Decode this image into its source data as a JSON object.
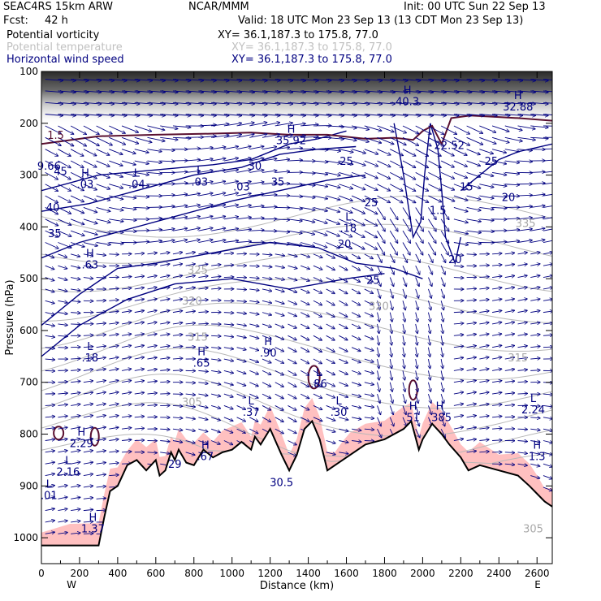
{
  "header": {
    "model": "SEAC4RS 15km ARW",
    "org": "NCAR/MMM",
    "init": "Init: 00 UTC Sun 22 Sep 13",
    "fcst_label": "Fcst:",
    "fcst_value": "42 h",
    "valid": "Valid: 18 UTC Mon 23 Sep 13 (13 CDT Mon 23 Sep 13)",
    "fields": [
      {
        "name": "Potential vorticity",
        "xy": "XY=  36.1,187.3 to 175.8, 77.0",
        "color": "#000000"
      },
      {
        "name": "Potential temperature",
        "xy": "XY=  36.1,187.3 to 175.8, 77.0",
        "color": "#c0c0c0"
      },
      {
        "name": "Horizontal wind speed",
        "xy": "XY=  36.1,187.3 to 175.8, 77.0",
        "color": "#000080"
      }
    ]
  },
  "chart_data": {
    "type": "cross-section",
    "xlabel": "Distance (km)",
    "ylabel": "Pressure (hPa)",
    "xlim": [
      0,
      2680
    ],
    "ylim": [
      1050,
      100
    ],
    "x_ticks": [
      0,
      200,
      400,
      600,
      800,
      1000,
      1200,
      1400,
      1600,
      1800,
      2000,
      2200,
      2400,
      2600
    ],
    "y_ticks": [
      100,
      200,
      300,
      400,
      500,
      600,
      700,
      800,
      900,
      1000
    ],
    "x_end_labels": {
      "left": "W",
      "right": "E"
    },
    "terrain": [
      [
        0,
        1015
      ],
      [
        150,
        1015
      ],
      [
        300,
        1015
      ],
      [
        330,
        960
      ],
      [
        360,
        910
      ],
      [
        400,
        900
      ],
      [
        450,
        860
      ],
      [
        500,
        850
      ],
      [
        550,
        870
      ],
      [
        600,
        850
      ],
      [
        620,
        880
      ],
      [
        650,
        870
      ],
      [
        680,
        835
      ],
      [
        700,
        850
      ],
      [
        720,
        830
      ],
      [
        760,
        855
      ],
      [
        800,
        860
      ],
      [
        850,
        830
      ],
      [
        900,
        845
      ],
      [
        950,
        835
      ],
      [
        1000,
        830
      ],
      [
        1050,
        815
      ],
      [
        1100,
        830
      ],
      [
        1120,
        805
      ],
      [
        1150,
        820
      ],
      [
        1200,
        790
      ],
      [
        1260,
        840
      ],
      [
        1300,
        870
      ],
      [
        1340,
        840
      ],
      [
        1380,
        790
      ],
      [
        1420,
        775
      ],
      [
        1460,
        810
      ],
      [
        1500,
        870
      ],
      [
        1540,
        860
      ],
      [
        1580,
        850
      ],
      [
        1620,
        840
      ],
      [
        1700,
        820
      ],
      [
        1800,
        810
      ],
      [
        1900,
        790
      ],
      [
        1940,
        775
      ],
      [
        1980,
        830
      ],
      [
        2000,
        810
      ],
      [
        2050,
        780
      ],
      [
        2100,
        800
      ],
      [
        2140,
        820
      ],
      [
        2200,
        845
      ],
      [
        2240,
        870
      ],
      [
        2300,
        860
      ],
      [
        2400,
        870
      ],
      [
        2500,
        880
      ],
      [
        2560,
        900
      ],
      [
        2600,
        915
      ],
      [
        2640,
        930
      ],
      [
        2680,
        940
      ]
    ],
    "theta_labels": [
      {
        "x": 2540,
        "p": 400,
        "label": "335"
      },
      {
        "x": 820,
        "p": 490,
        "label": "325"
      },
      {
        "x": 790,
        "p": 550,
        "label": "320"
      },
      {
        "x": 1770,
        "p": 560,
        "label": "320"
      },
      {
        "x": 2500,
        "p": 660,
        "label": "315"
      },
      {
        "x": 820,
        "p": 620,
        "label": "315"
      },
      {
        "x": 790,
        "p": 745,
        "label": "305"
      },
      {
        "x": 2580,
        "p": 990,
        "label": "305"
      }
    ],
    "wind_labels": [
      {
        "x": 100,
        "p": 300,
        "label": "45"
      },
      {
        "x": 60,
        "p": 370,
        "label": "40"
      },
      {
        "x": 70,
        "p": 420,
        "label": "35"
      },
      {
        "x": 1120,
        "p": 290,
        "label": "30"
      },
      {
        "x": 1600,
        "p": 280,
        "label": "25"
      },
      {
        "x": 1730,
        "p": 360,
        "label": "25"
      },
      {
        "x": 1590,
        "p": 440,
        "label": "20"
      },
      {
        "x": 2170,
        "p": 470,
        "label": "20"
      },
      {
        "x": 1740,
        "p": 510,
        "label": "25"
      },
      {
        "x": 2230,
        "p": 330,
        "label": "15"
      },
      {
        "x": 2450,
        "p": 350,
        "label": "20"
      },
      {
        "x": 2360,
        "p": 280,
        "label": "25"
      },
      {
        "x": 1240,
        "p": 320,
        "label": "35"
      }
    ],
    "pv_labels": [
      {
        "x": 75,
        "p": 230,
        "label": "1.5"
      }
    ],
    "extrema": [
      {
        "x": 230,
        "p": 325,
        "kind": "H",
        "value": ".03"
      },
      {
        "x": 500,
        "p": 325,
        "kind": "L",
        "value": ".04"
      },
      {
        "x": 830,
        "p": 320,
        "kind": "L",
        "value": ".03"
      },
      {
        "x": 1050,
        "p": 330,
        "kind": "",
        "value": ".03"
      },
      {
        "x": 255,
        "p": 480,
        "kind": "H",
        "value": ".63"
      },
      {
        "x": 1310,
        "p": 240,
        "kind": "H",
        "value": "35.92"
      },
      {
        "x": 1610,
        "p": 410,
        "kind": "L",
        "value": ".18"
      },
      {
        "x": 1920,
        "p": 165,
        "kind": "H",
        "value": "40.3"
      },
      {
        "x": 2500,
        "p": 175,
        "kind": "H",
        "value": "32.88"
      },
      {
        "x": 2140,
        "p": 250,
        "kind": "",
        "value": "22.52"
      },
      {
        "x": 2080,
        "p": 375,
        "kind": "",
        "value": "1.5"
      },
      {
        "x": 40,
        "p": 290,
        "kind": "",
        "value": "9.66"
      },
      {
        "x": 255,
        "p": 660,
        "kind": "L",
        "value": ".18"
      },
      {
        "x": 840,
        "p": 670,
        "kind": "H",
        "value": ".65"
      },
      {
        "x": 1190,
        "p": 650,
        "kind": "H",
        "value": ".90"
      },
      {
        "x": 1100,
        "p": 765,
        "kind": "L",
        "value": ".37"
      },
      {
        "x": 1455,
        "p": 710,
        "kind": "L",
        "value": ".86"
      },
      {
        "x": 1560,
        "p": 765,
        "kind": "L",
        "value": ".30"
      },
      {
        "x": 1950,
        "p": 775,
        "kind": "H",
        "value": "51"
      },
      {
        "x": 2090,
        "p": 775,
        "kind": "H",
        "value": ".385"
      },
      {
        "x": 2580,
        "p": 760,
        "kind": "L",
        "value": "2.24"
      },
      {
        "x": 2600,
        "p": 850,
        "kind": "H",
        "value": "1.3"
      },
      {
        "x": 210,
        "p": 825,
        "kind": "H",
        "value": "2.29"
      },
      {
        "x": 140,
        "p": 880,
        "kind": "L",
        "value": "2.16"
      },
      {
        "x": 40,
        "p": 925,
        "kind": "L",
        "value": ".01"
      },
      {
        "x": 270,
        "p": 990,
        "kind": "H",
        "value": "1.37"
      },
      {
        "x": 700,
        "p": 865,
        "kind": "",
        "value": "29"
      },
      {
        "x": 860,
        "p": 850,
        "kind": "H",
        "value": ".67"
      },
      {
        "x": 1260,
        "p": 900,
        "kind": "",
        "value": "30.5"
      }
    ]
  }
}
